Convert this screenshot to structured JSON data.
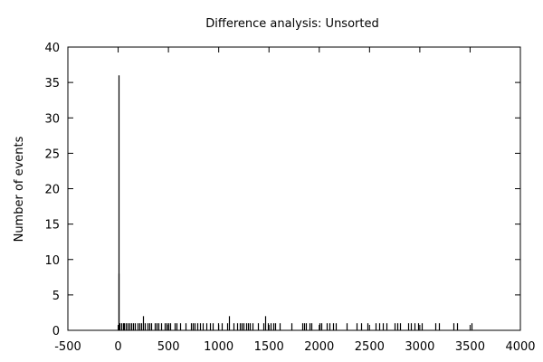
{
  "chart_data": {
    "type": "bar",
    "title": "Difference analysis: Unsorted",
    "xlabel": "",
    "ylabel": "Number of events",
    "xlim": [
      -500,
      4000
    ],
    "ylim": [
      0,
      40
    ],
    "x_ticks": [
      "-500",
      "0",
      "500",
      "1000",
      "1500",
      "2000",
      "2500",
      "3000",
      "3500",
      "4000"
    ],
    "y_ticks": [
      "0",
      "5",
      "10",
      "15",
      "20",
      "25",
      "30",
      "35",
      "40"
    ],
    "grid": false,
    "legend": "none",
    "bar_color": "#000000",
    "x": [
      0,
      5,
      12,
      30,
      45,
      60,
      75,
      90,
      110,
      130,
      150,
      170,
      190,
      210,
      230,
      250,
      265,
      290,
      310,
      330,
      360,
      380,
      400,
      430,
      460,
      480,
      500,
      520,
      560,
      580,
      620,
      670,
      720,
      740,
      760,
      790,
      810,
      840,
      880,
      910,
      940,
      990,
      1030,
      1080,
      1100,
      1150,
      1180,
      1210,
      1230,
      1250,
      1270,
      1290,
      1310,
      1340,
      1390,
      1440,
      1460,
      1490,
      1520,
      1540,
      1560,
      1610,
      1720,
      1830,
      1850,
      1870,
      1900,
      1920,
      2000,
      2020,
      2070,
      2100,
      2140,
      2160,
      2270,
      2370,
      2420,
      2480,
      2560,
      2600,
      2630,
      2670,
      2750,
      2780,
      2800,
      2880,
      2910,
      2950,
      2980,
      3020,
      3150,
      3190,
      3330,
      3370,
      3510
    ],
    "values": [
      36,
      8,
      1,
      1,
      1,
      1,
      1,
      1,
      1,
      1,
      1,
      1,
      1,
      1,
      1,
      2,
      1,
      1,
      1,
      1,
      1,
      1,
      1,
      1,
      1,
      1,
      1,
      1,
      1,
      1,
      1,
      1,
      1,
      1,
      1,
      1,
      1,
      1,
      1,
      1,
      1,
      1,
      1,
      1,
      2,
      1,
      1,
      1,
      1,
      1,
      1,
      1,
      1,
      1,
      1,
      1,
      2,
      1,
      1,
      1,
      1,
      1,
      1,
      1,
      1,
      1,
      1,
      1,
      1,
      1,
      1,
      1,
      1,
      1,
      1,
      1,
      1,
      1,
      1,
      1,
      1,
      1,
      1,
      1,
      1,
      1,
      1,
      1,
      1,
      1,
      1,
      1,
      1,
      1,
      1
    ]
  }
}
